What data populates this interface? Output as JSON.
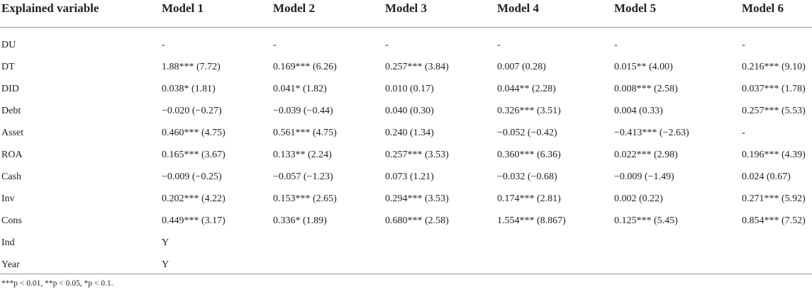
{
  "table": {
    "header": [
      "Explained variable",
      "Model 1",
      "Model 2",
      "Model 3",
      "Model 4",
      "Model 5",
      "Model 6"
    ],
    "rows": [
      [
        "DU",
        "-",
        "-",
        "-",
        "-",
        "-",
        "-"
      ],
      [
        "DT",
        "1.88*** (7.72)",
        "0.169*** (6.26)",
        "0.257*** (3.84)",
        "0.007 (0.28)",
        "0.015** (4.00)",
        "0.216*** (9.10)"
      ],
      [
        "DID",
        "0.038* (1.81)",
        "0.041* (1.82)",
        "0.010 (0.17)",
        "0.044** (2.28)",
        "0.008*** (2.58)",
        "0.037*** (1.78)"
      ],
      [
        "Debt",
        "−0.020 (−0.27)",
        "−0.039 (−0.44)",
        "0.040 (0.30)",
        "0.326*** (3.51)",
        "0.004 (0.33)",
        "0.257*** (5.53)"
      ],
      [
        "Asset",
        "0.460*** (4.75)",
        "0.561*** (4.75)",
        "0.240 (1.34)",
        "−0.052 (−0.42)",
        "−0.413*** (−2.63)",
        "-"
      ],
      [
        "ROA",
        "0.165*** (3.67)",
        "0.133** (2.24)",
        "0.257*** (3.53)",
        "0.360*** (6.36)",
        "0.022*** (2.98)",
        "0.196*** (4.39)"
      ],
      [
        "Cash",
        "−0.009 (−0.25)",
        "−0.057 (−1.23)",
        "0.073 (1.21)",
        "−0.032 (−0.68)",
        "−0.009 (−1.49)",
        "0.024 (0.67)"
      ],
      [
        "Inv",
        "0.202*** (4.22)",
        "0.153*** (2.65)",
        "0.294*** (3.53)",
        "0.174*** (2.81)",
        "0.002 (0.22)",
        "0.271*** (5.92)"
      ],
      [
        "Cons",
        "0.449*** (3.17)",
        "0.336* (1.89)",
        "0.680*** (2.58)",
        "1.554*** (8.867)",
        "0.125*** (5.45)",
        "0.854*** (7.52)"
      ],
      [
        "Ind",
        "Y"
      ],
      [
        "Year",
        "Y"
      ]
    ],
    "footnote": "***p < 0.01, **p < 0.05, *p < 0.1."
  }
}
